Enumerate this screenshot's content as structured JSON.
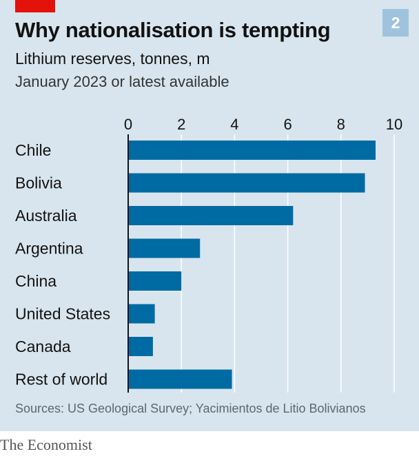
{
  "header": {
    "title": "Why nationalisation is tempting",
    "chart_number": "2",
    "subtitle": "Lithium reserves, tonnes, m",
    "subsubtitle": "January 2023 or latest available"
  },
  "footer": {
    "source": "Sources: US Geological Survey; Yacimientos de Litio Bolivianos",
    "brand": "The Economist"
  },
  "colors": {
    "bar": "#006ba2",
    "background": "#d8e5ee",
    "gridline": "#ffffff",
    "baseline": "#121212",
    "accent": "#e3120b"
  },
  "chart_data": {
    "type": "bar",
    "orientation": "horizontal",
    "title": "Why nationalisation is tempting",
    "subtitle": "Lithium reserves, tonnes, m",
    "categories": [
      "Chile",
      "Bolivia",
      "Australia",
      "Argentina",
      "China",
      "United States",
      "Canada",
      "Rest of world"
    ],
    "values": [
      9.3,
      8.9,
      6.2,
      2.7,
      2.0,
      1.0,
      0.93,
      3.9
    ],
    "xlim": [
      0,
      10
    ],
    "xticks": [
      0,
      2,
      4,
      6,
      8,
      10
    ],
    "xtick_labels": [
      "0",
      "2",
      "4",
      "6",
      "8",
      "10"
    ],
    "axis_position": "top",
    "grid": true
  }
}
